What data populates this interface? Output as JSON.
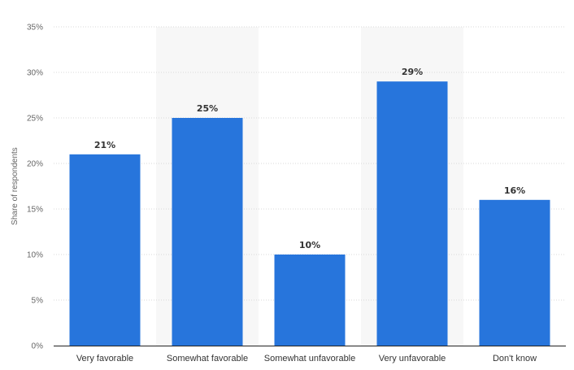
{
  "chart_data": {
    "type": "bar",
    "categories": [
      "Very favorable",
      "Somewhat favorable",
      "Somewhat unfavorable",
      "Very unfavorable",
      "Don't know"
    ],
    "values": [
      21,
      25,
      10,
      29,
      16
    ],
    "value_labels": [
      "21%",
      "25%",
      "10%",
      "29%",
      "16%"
    ],
    "title": "",
    "xlabel": "",
    "ylabel": "Share of respondents",
    "ylim": [
      0,
      35
    ],
    "yticks": [
      0,
      5,
      10,
      15,
      20,
      25,
      30,
      35
    ],
    "ytick_labels": [
      "0%",
      "5%",
      "10%",
      "15%",
      "20%",
      "25%",
      "30%",
      "35%"
    ],
    "grid": true,
    "legend": "none",
    "colors": {
      "bar": "#2775dc",
      "grid": "#d8d8d8",
      "band": "#f7f7f7",
      "axis": "#222222"
    }
  }
}
